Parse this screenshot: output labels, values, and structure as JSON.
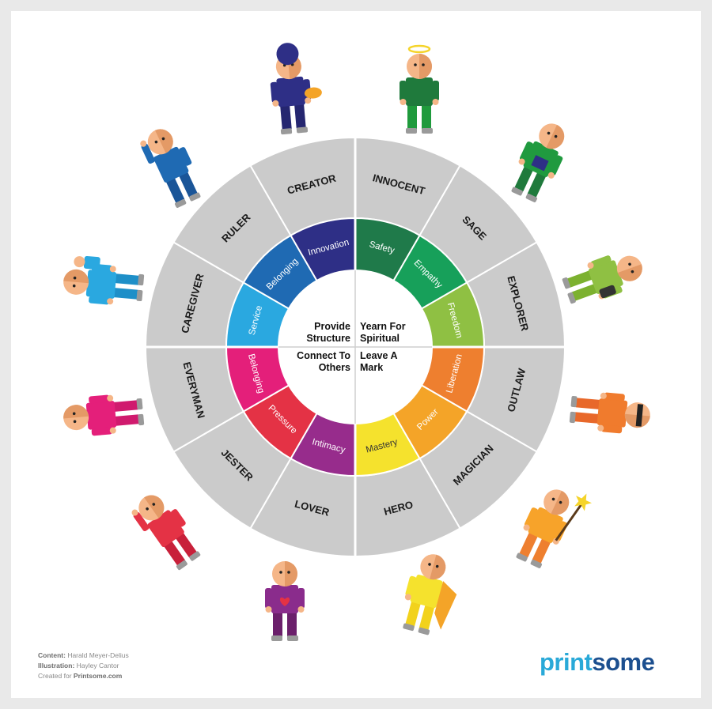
{
  "center_labels": [
    {
      "line1": "Provide",
      "line2": "Structure"
    },
    {
      "line1": "Yearn For",
      "line2": "Spiritual"
    },
    {
      "line1": "Connect To",
      "line2": "Others"
    },
    {
      "line1": "Leave A",
      "line2": "Mark"
    }
  ],
  "motivations": [
    {
      "label": "Safety",
      "color": "#1f7a4a"
    },
    {
      "label": "Empathy",
      "color": "#17a05a"
    },
    {
      "label": "Freedom",
      "color": "#8fc043"
    },
    {
      "label": "Liberation",
      "color": "#ee7f2f"
    },
    {
      "label": "Power",
      "color": "#f4a428"
    },
    {
      "label": "Mastery",
      "color": "#f5e22d"
    },
    {
      "label": "Intimacy",
      "color": "#972c8c"
    },
    {
      "label": "Pressure",
      "color": "#e43245"
    },
    {
      "label": "Belonging",
      "color": "#e41f7a"
    },
    {
      "label": "Service",
      "color": "#2aa8e0"
    },
    {
      "label": "Belonging",
      "color": "#1f6ab3"
    },
    {
      "label": "Innovation",
      "color": "#2e2f86"
    }
  ],
  "archetypes": [
    "INNOCENT",
    "SAGE",
    "EXPLORER",
    "OUTLAW",
    "MAGICIAN",
    "HERO",
    "LOVER",
    "JESTER",
    "EVERYMAN",
    "CAREGIVER",
    "RULER",
    "CREATOR"
  ],
  "characters": [
    {
      "name": "innocent",
      "body": "#1f7a3c",
      "legs": "#1f9a3c",
      "extra": "halo"
    },
    {
      "name": "sage",
      "body": "#209a3f",
      "legs": "#1f7a3c",
      "extra": "book"
    },
    {
      "name": "explorer",
      "body": "#8fc043",
      "legs": "#7cb12f",
      "extra": "bag"
    },
    {
      "name": "outlaw",
      "body": "#f07b2d",
      "legs": "#e8682a",
      "extra": "mask"
    },
    {
      "name": "magician",
      "body": "#f7a32a",
      "legs": "#ee7f2f",
      "extra": "wand"
    },
    {
      "name": "hero",
      "body": "#f5e22d",
      "legs": "#f2d21c",
      "extra": "cape"
    },
    {
      "name": "lover",
      "body": "#8a2c8c",
      "legs": "#6b1f6b",
      "extra": "heart"
    },
    {
      "name": "jester",
      "body": "#e43245",
      "legs": "#c8203a",
      "extra": "jump"
    },
    {
      "name": "everyman",
      "body": "#e41f7a",
      "legs": "#d01a6e",
      "extra": "none"
    },
    {
      "name": "caregiver",
      "body": "#2aa8e0",
      "legs": "#1e8fc8",
      "extra": "baby"
    },
    {
      "name": "ruler",
      "body": "#1f6ab3",
      "legs": "#1a5598",
      "extra": "point"
    },
    {
      "name": "creator",
      "body": "#2e2f86",
      "legs": "#252670",
      "extra": "palette"
    }
  ],
  "colors": {
    "outer_ring": "#cbcbcb",
    "separator": "#ffffff",
    "skin": "#f5b688",
    "skin_shadow": "#e49a66",
    "shoe": "#9a9a9a"
  },
  "credits": {
    "content_label": "Content:",
    "content_value": "Harald Meyer-Delius",
    "illustration_label": "Illustration:",
    "illustration_value": "Hayley Cantor",
    "created_prefix": "Created for",
    "created_value": "Printsome.com"
  },
  "logo": {
    "part1": "print",
    "part2": "some"
  }
}
